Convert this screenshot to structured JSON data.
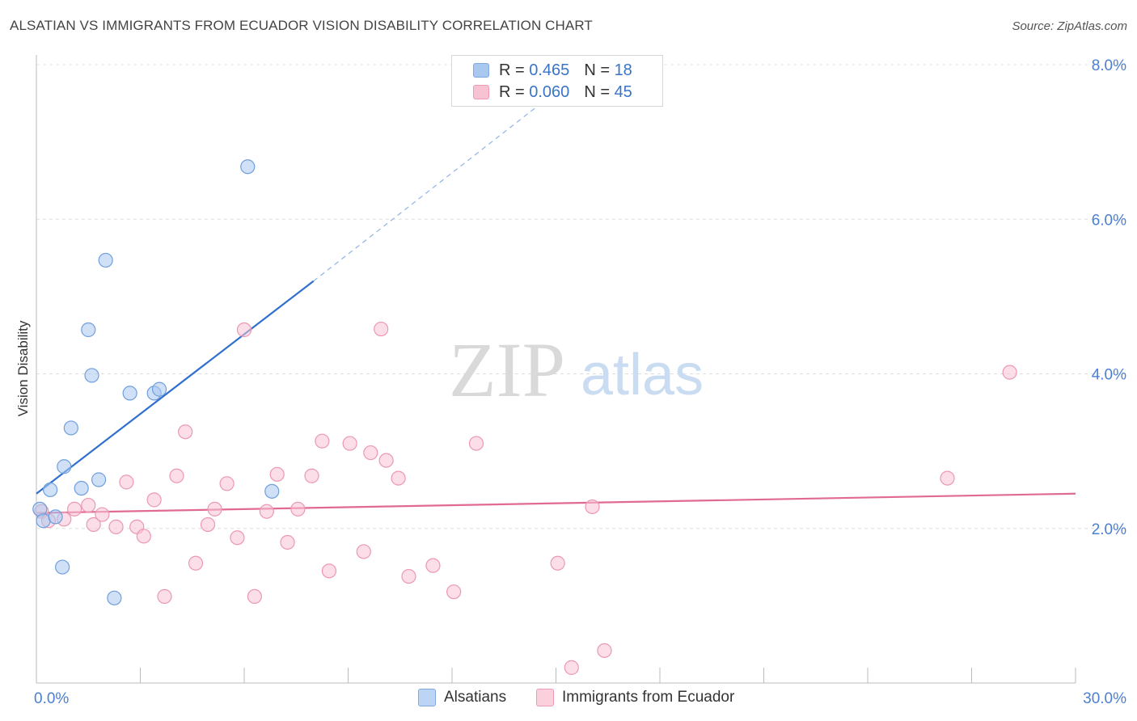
{
  "title": "ALSATIAN VS IMMIGRANTS FROM ECUADOR VISION DISABILITY CORRELATION CHART",
  "source": "Source: ZipAtlas.com",
  "watermark": {
    "zip": "ZIP",
    "atlas": "atlas"
  },
  "legend_top": [
    {
      "r_label": "R =",
      "r_value": "0.465",
      "n_label": "N =",
      "n_value": "18",
      "color": "#a9c8f0",
      "border": "#7fa8e0"
    },
    {
      "r_label": "R =",
      "r_value": "0.060",
      "n_label": "N =",
      "n_value": "45",
      "color": "#f7c3d3",
      "border": "#ee9ab4"
    }
  ],
  "legend_bottom": [
    {
      "label": "Alsatians",
      "color": "#bcd5f5",
      "border": "#7fa8e0"
    },
    {
      "label": "Immigrants from Ecuador",
      "color": "#f9d0dc",
      "border": "#ee9ab4"
    }
  ],
  "chart_data": {
    "type": "scatter",
    "title": "ALSATIAN VS IMMIGRANTS FROM ECUADOR VISION DISABILITY CORRELATION CHART",
    "xlabel": "",
    "ylabel": "Vision Disability",
    "xlim": [
      0,
      30
    ],
    "ylim": [
      0,
      8
    ],
    "x_tick_labels": [
      "0.0%",
      "30.0%"
    ],
    "y_ticks": [
      2,
      4,
      6,
      8
    ],
    "y_tick_labels": [
      "2.0%",
      "4.0%",
      "6.0%",
      "8.0%"
    ],
    "grid": true,
    "series": [
      {
        "name": "Alsatians",
        "color": "#a9c8f0",
        "stroke": "#6f9fdd",
        "points": [
          [
            0.1,
            2.25
          ],
          [
            0.2,
            2.1
          ],
          [
            0.4,
            2.5
          ],
          [
            0.55,
            2.15
          ],
          [
            0.75,
            1.5
          ],
          [
            0.8,
            2.8
          ],
          [
            1.0,
            3.3
          ],
          [
            1.3,
            2.52
          ],
          [
            1.5,
            4.57
          ],
          [
            1.6,
            3.98
          ],
          [
            1.8,
            2.63
          ],
          [
            2.0,
            5.47
          ],
          [
            2.25,
            1.1
          ],
          [
            2.7,
            3.75
          ],
          [
            3.4,
            3.75
          ],
          [
            3.55,
            3.8
          ],
          [
            6.1,
            6.68
          ],
          [
            6.8,
            2.48
          ]
        ],
        "trend": {
          "x0": 0.0,
          "y0": 2.45,
          "x1": 8.0,
          "y1": 5.2,
          "dash_to_x": 16.0,
          "dash_to_y": 8.0,
          "color": "#2f6fcf"
        }
      },
      {
        "name": "Immigrants from Ecuador",
        "color": "#f7c3d3",
        "stroke": "#ec98b1",
        "points": [
          [
            0.15,
            2.22
          ],
          [
            0.35,
            2.1
          ],
          [
            0.8,
            2.12
          ],
          [
            1.1,
            2.25
          ],
          [
            1.5,
            2.3
          ],
          [
            1.65,
            2.05
          ],
          [
            1.9,
            2.18
          ],
          [
            2.3,
            2.02
          ],
          [
            2.6,
            2.6
          ],
          [
            2.9,
            2.02
          ],
          [
            3.1,
            1.9
          ],
          [
            3.4,
            2.37
          ],
          [
            3.7,
            1.12
          ],
          [
            4.05,
            2.68
          ],
          [
            4.3,
            3.25
          ],
          [
            4.6,
            1.55
          ],
          [
            4.95,
            2.05
          ],
          [
            5.15,
            2.25
          ],
          [
            5.5,
            2.58
          ],
          [
            5.8,
            1.88
          ],
          [
            6.0,
            4.57
          ],
          [
            6.3,
            1.12
          ],
          [
            6.65,
            2.22
          ],
          [
            6.95,
            2.7
          ],
          [
            7.25,
            1.82
          ],
          [
            7.55,
            2.25
          ],
          [
            7.95,
            2.68
          ],
          [
            8.25,
            3.13
          ],
          [
            8.45,
            1.45
          ],
          [
            9.05,
            3.1
          ],
          [
            9.45,
            1.7
          ],
          [
            9.65,
            2.98
          ],
          [
            9.95,
            4.58
          ],
          [
            10.1,
            2.88
          ],
          [
            10.45,
            2.65
          ],
          [
            10.75,
            1.38
          ],
          [
            11.45,
            1.52
          ],
          [
            12.05,
            1.18
          ],
          [
            12.7,
            3.1
          ],
          [
            15.05,
            1.55
          ],
          [
            15.45,
            0.2
          ],
          [
            16.05,
            2.28
          ],
          [
            16.4,
            0.42
          ],
          [
            26.3,
            2.65
          ],
          [
            28.1,
            4.02
          ]
        ],
        "trend": {
          "x0": 0.0,
          "y0": 2.2,
          "x1": 30.0,
          "y1": 2.45,
          "color": "#e06a93"
        }
      }
    ]
  }
}
